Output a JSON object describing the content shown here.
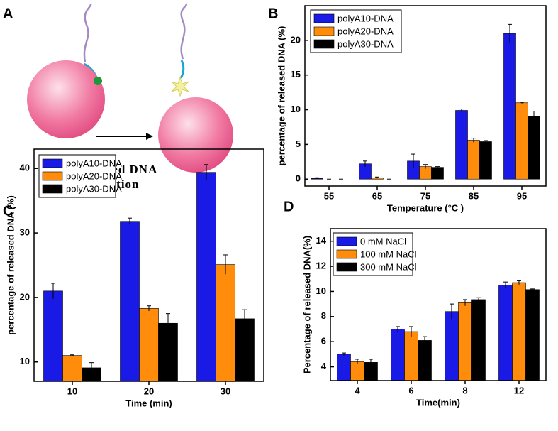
{
  "diagram": {
    "panel_label": "A",
    "caption": [
      "nonthiolated DNA",
      "dissociation"
    ]
  },
  "chart_data": [
    {
      "type": "bar",
      "panel_label": "B",
      "xlabel": "Temperature (°C )",
      "ylabel": "percentage of released DNA (%)",
      "categories": [
        "55",
        "65",
        "75",
        "85",
        "95"
      ],
      "ylim": [
        -1,
        25
      ],
      "yticks": [
        0,
        5,
        10,
        15,
        20
      ],
      "grid": false,
      "legend": "upper left",
      "series": [
        {
          "name": "polyA10-DNA",
          "color": "#1a1ae6",
          "values": [
            0.1,
            2.2,
            2.6,
            9.9,
            21.0
          ],
          "errors": [
            0.1,
            0.4,
            1.0,
            0.2,
            1.3
          ]
        },
        {
          "name": "polyA20-DNA",
          "color": "#ff8c0a",
          "values": [
            0,
            0.2,
            1.8,
            5.6,
            11.0
          ],
          "errors": [
            0,
            0.1,
            0.3,
            0.3,
            0.1
          ]
        },
        {
          "name": "polyA30-DNA",
          "color": "#000000",
          "values": [
            0,
            0,
            1.7,
            5.4,
            9.0
          ],
          "errors": [
            0,
            0,
            0.1,
            0.15,
            0.8
          ]
        }
      ]
    },
    {
      "type": "bar",
      "panel_label": "C",
      "xlabel": "Time (min)",
      "ylabel": "percentage of released DNA (%)",
      "categories": [
        "10",
        "20",
        "30"
      ],
      "ylim": [
        7,
        43
      ],
      "yticks": [
        10,
        20,
        30,
        40
      ],
      "grid": false,
      "legend": "upper left",
      "series": [
        {
          "name": "polyA10-DNA",
          "color": "#1a1ae6",
          "values": [
            21.0,
            31.8,
            39.4
          ],
          "errors": [
            1.2,
            0.5,
            1.2
          ]
        },
        {
          "name": "polyA20-DNA",
          "color": "#ff8c0a",
          "values": [
            11.0,
            18.3,
            25.1
          ],
          "errors": [
            0.1,
            0.4,
            1.5
          ]
        },
        {
          "name": "polyA30-DNA",
          "color": "#000000",
          "values": [
            9.1,
            16.0,
            16.7
          ],
          "errors": [
            0.8,
            1.5,
            1.4
          ]
        }
      ]
    },
    {
      "type": "bar",
      "panel_label": "D",
      "xlabel": "Time(min)",
      "ylabel": "Percentage of released DNA(%)",
      "categories": [
        "4",
        "6",
        "8",
        "12"
      ],
      "ylim": [
        2.9,
        15
      ],
      "yticks": [
        4,
        6,
        8,
        10,
        12,
        14
      ],
      "grid": false,
      "legend": "upper left",
      "series": [
        {
          "name": "0 mM NaCl",
          "color": "#1a1ae6",
          "values": [
            5.0,
            7.0,
            8.4,
            10.5
          ],
          "errors": [
            0.1,
            0.2,
            0.6,
            0.25
          ]
        },
        {
          "name": "100 mM NaCl",
          "color": "#ff8c0a",
          "values": [
            4.4,
            6.8,
            9.1,
            10.7
          ],
          "errors": [
            0.2,
            0.4,
            0.25,
            0.15
          ]
        },
        {
          "name": "300 mM NaCl",
          "color": "#000000",
          "values": [
            4.35,
            6.1,
            9.35,
            10.15
          ],
          "errors": [
            0.25,
            0.3,
            0.15,
            0.05
          ]
        }
      ]
    }
  ]
}
